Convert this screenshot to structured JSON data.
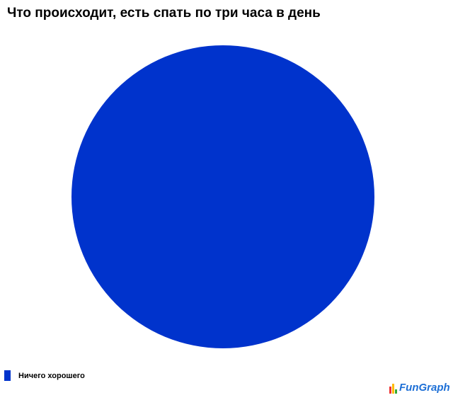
{
  "chart_data": {
    "type": "pie",
    "title": "Что происходит, есть спать по три часа в день",
    "slices": [
      {
        "label": "Ничего хорошего",
        "value": 100,
        "color": "#0033cc"
      }
    ],
    "legend_placement": "bottom-left"
  },
  "logo": {
    "text": "FunGraph"
  }
}
